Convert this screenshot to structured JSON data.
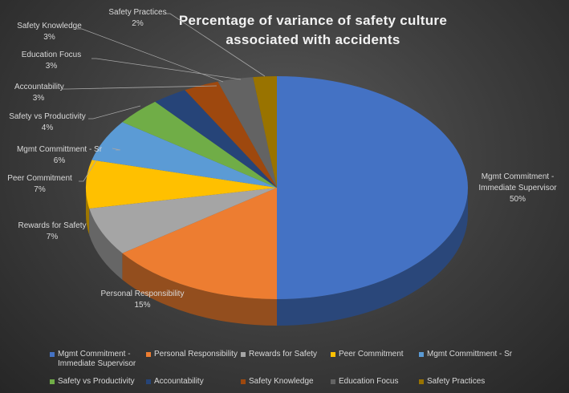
{
  "chart_data": {
    "type": "pie",
    "title": "Percentage of variance of safety culture\nassociated with accidents",
    "slices": [
      {
        "name": "Mgmt Commitment -\nImmediate Supervisor",
        "value": 50,
        "label": "50%",
        "color": "#4472C4"
      },
      {
        "name": "Personal Responsibility",
        "value": 15,
        "label": "15%",
        "color": "#ED7D31"
      },
      {
        "name": "Rewards for Safety",
        "value": 7,
        "label": "7%",
        "color": "#A5A5A5"
      },
      {
        "name": "Peer Commitment",
        "value": 7,
        "label": "7%",
        "color": "#FFC000"
      },
      {
        "name": "Mgmt Committment - Sr",
        "value": 6,
        "label": "6%",
        "color": "#5B9BD5"
      },
      {
        "name": "Safety vs Productivity",
        "value": 4,
        "label": "4%",
        "color": "#70AD47"
      },
      {
        "name": "Accountability",
        "value": 3,
        "label": "3%",
        "color": "#264478"
      },
      {
        "name": "Safety Knowledge",
        "value": 3,
        "label": "3%",
        "color": "#9E480E"
      },
      {
        "name": "Education Focus",
        "value": 3,
        "label": "3%",
        "color": "#636363"
      },
      {
        "name": "Safety Practices",
        "value": 2,
        "label": "2%",
        "color": "#997300"
      }
    ],
    "legend_position": "bottom"
  }
}
